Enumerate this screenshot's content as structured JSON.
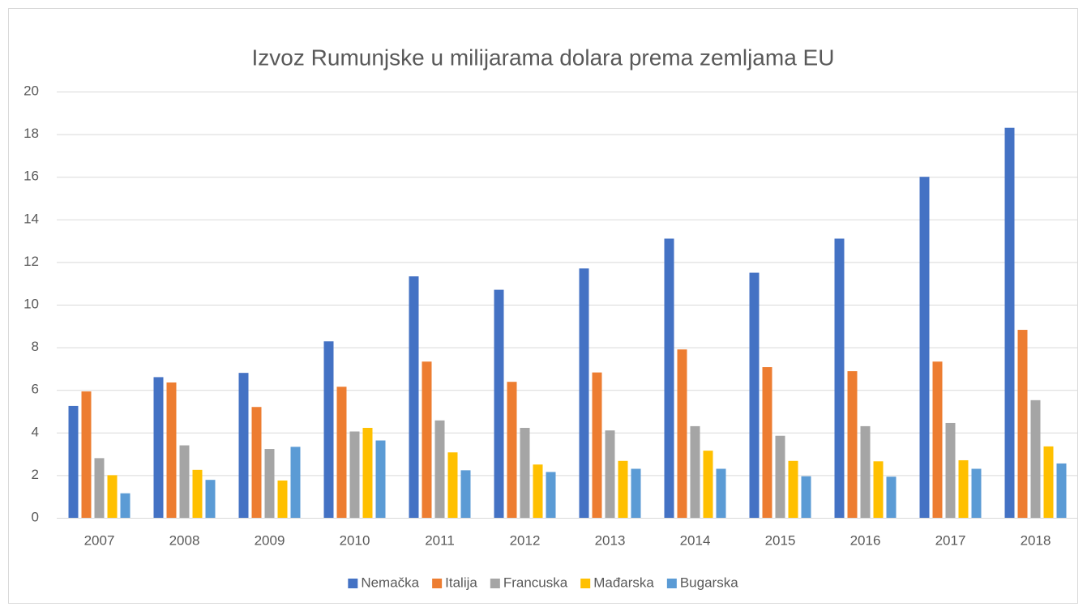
{
  "chart_data": {
    "type": "bar",
    "title": "Izvoz Rumunjske u milijarama dolara prema zemljama EU",
    "categories": [
      "2007",
      "2008",
      "2009",
      "2010",
      "2011",
      "2012",
      "2013",
      "2014",
      "2015",
      "2016",
      "2017",
      "2018"
    ],
    "series": [
      {
        "name": "Nemačka",
        "color": "#4472c4",
        "values": [
          5.25,
          6.6,
          6.8,
          8.28,
          11.33,
          10.7,
          11.7,
          13.1,
          11.5,
          13.1,
          16.0,
          18.3
        ]
      },
      {
        "name": "Italija",
        "color": "#ed7d31",
        "values": [
          5.93,
          6.35,
          5.2,
          6.15,
          7.33,
          6.38,
          6.82,
          7.9,
          7.07,
          6.88,
          7.33,
          8.82
        ]
      },
      {
        "name": "Francuska",
        "color": "#a5a5a5",
        "values": [
          2.8,
          3.4,
          3.23,
          4.05,
          4.57,
          4.22,
          4.1,
          4.3,
          3.85,
          4.3,
          4.45,
          5.52
        ]
      },
      {
        "name": "Mađarska",
        "color": "#ffc000",
        "values": [
          2.0,
          2.25,
          1.75,
          4.22,
          3.07,
          2.5,
          2.67,
          3.15,
          2.67,
          2.65,
          2.7,
          3.35
        ]
      },
      {
        "name": "Bugarska",
        "color": "#5b9bd5",
        "values": [
          1.15,
          1.78,
          3.33,
          3.63,
          2.23,
          2.15,
          2.3,
          2.3,
          1.95,
          1.93,
          2.3,
          2.55
        ]
      }
    ],
    "ylim": [
      0,
      20
    ],
    "yticks": [
      0,
      2,
      4,
      6,
      8,
      10,
      12,
      14,
      16,
      18,
      20
    ],
    "grid": true,
    "legend": "bottom"
  }
}
